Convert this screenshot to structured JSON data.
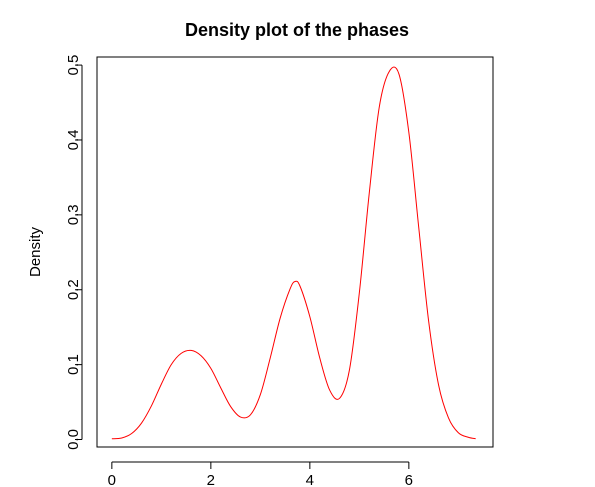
{
  "chart_data": {
    "type": "line",
    "title": "Density plot of the phases",
    "xlabel": "",
    "ylabel": "Density",
    "xlim": [
      -0.3,
      7.7
    ],
    "ylim": [
      -0.01,
      0.5108
    ],
    "x_ticks": [
      0,
      2,
      4,
      6
    ],
    "y_ticks": [
      0.0,
      0.1,
      0.2,
      0.3,
      0.4,
      0.5
    ],
    "y_tick_labels": [
      "0.0",
      "0.1",
      "0.2",
      "0.3",
      "0.4",
      "0.5"
    ],
    "grid": false,
    "legend": "none",
    "series": [
      {
        "color": "#ff0000",
        "x": [
          0.0,
          0.2,
          0.4,
          0.6,
          0.8,
          1.0,
          1.2,
          1.4,
          1.6,
          1.8,
          2.0,
          2.2,
          2.4,
          2.6,
          2.8,
          3.0,
          3.2,
          3.4,
          3.6,
          3.7,
          3.8,
          4.0,
          4.2,
          4.4,
          4.6,
          4.8,
          5.0,
          5.2,
          5.4,
          5.6,
          5.8,
          6.0,
          6.2,
          6.4,
          6.6,
          6.8,
          7.0,
          7.2,
          7.35
        ],
        "y": [
          0.001,
          0.002,
          0.008,
          0.022,
          0.045,
          0.074,
          0.1,
          0.115,
          0.119,
          0.112,
          0.095,
          0.069,
          0.044,
          0.03,
          0.033,
          0.06,
          0.109,
          0.162,
          0.201,
          0.211,
          0.205,
          0.164,
          0.109,
          0.066,
          0.055,
          0.093,
          0.196,
          0.329,
          0.443,
          0.491,
          0.488,
          0.41,
          0.283,
          0.158,
          0.073,
          0.029,
          0.009,
          0.003,
          0.001
        ]
      }
    ]
  }
}
